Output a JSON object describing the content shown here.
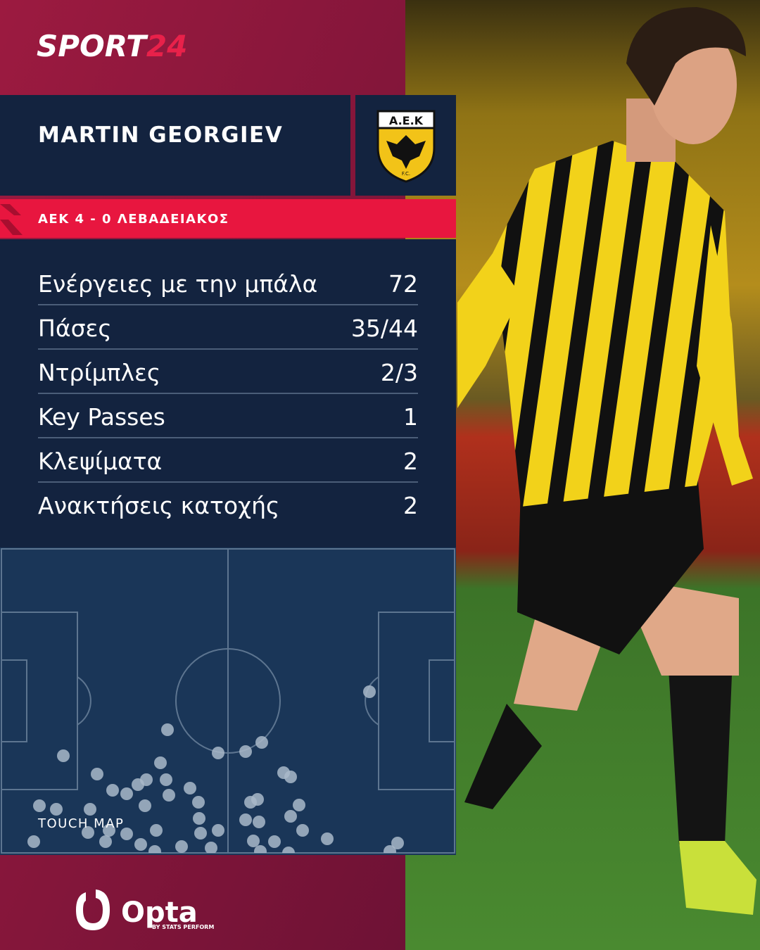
{
  "brand": {
    "name": "SPORT",
    "number": "24"
  },
  "player": {
    "name": "MARTIN GEORGIEV"
  },
  "crest": {
    "top": "A.E.K",
    "bottom": "F.C."
  },
  "match": "ΑΕΚ 4 - 0 ΛΕΒΑΔΕΙΑΚΟΣ",
  "stats": [
    {
      "label": "Ενέργειες με την μπάλα",
      "value": 72
    },
    {
      "label": "Πάσες",
      "value": "35/44"
    },
    {
      "label": "Ντρίμπλες",
      "value": "2/3"
    },
    {
      "label": "Key Passes",
      "value": 1
    },
    {
      "label": "Κλεψίματα",
      "value": 2
    },
    {
      "label": "Ανακτήσεις κατοχής",
      "value": 2
    }
  ],
  "touch_map": {
    "title": "TOUCH MAP"
  },
  "footer": {
    "logo": "Opta",
    "tagline": "BY STATS PERFORM"
  }
}
